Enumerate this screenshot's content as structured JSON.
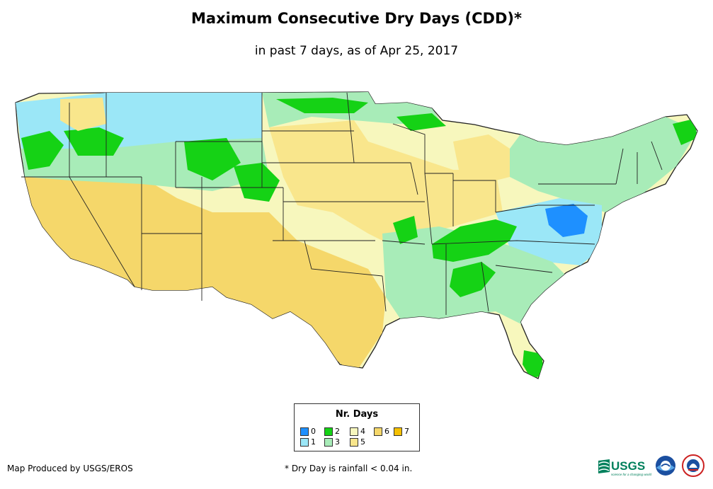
{
  "title": "Maximum Consecutive Dry Days (CDD)*",
  "subtitle": "in past 7 days, as of Apr 25, 2017",
  "legend": {
    "title": "Nr. Days",
    "items": [
      {
        "label": "0",
        "color": "#1e90ff"
      },
      {
        "label": "1",
        "color": "#9be7f7"
      },
      {
        "label": "2",
        "color": "#15d215"
      },
      {
        "label": "3",
        "color": "#a8ecb8"
      },
      {
        "label": "4",
        "color": "#f7f7bd"
      },
      {
        "label": "5",
        "color": "#f9e68c"
      },
      {
        "label": "6",
        "color": "#f5d76a"
      },
      {
        "label": "7",
        "color": "#f5c000"
      }
    ]
  },
  "credit": "Map Produced by USGS/EROS",
  "footnote": "* Dry Day is rainfall < 0.04 in.",
  "logos": {
    "usgs": "USGS",
    "usgs_tagline": "science for a changing world"
  }
}
